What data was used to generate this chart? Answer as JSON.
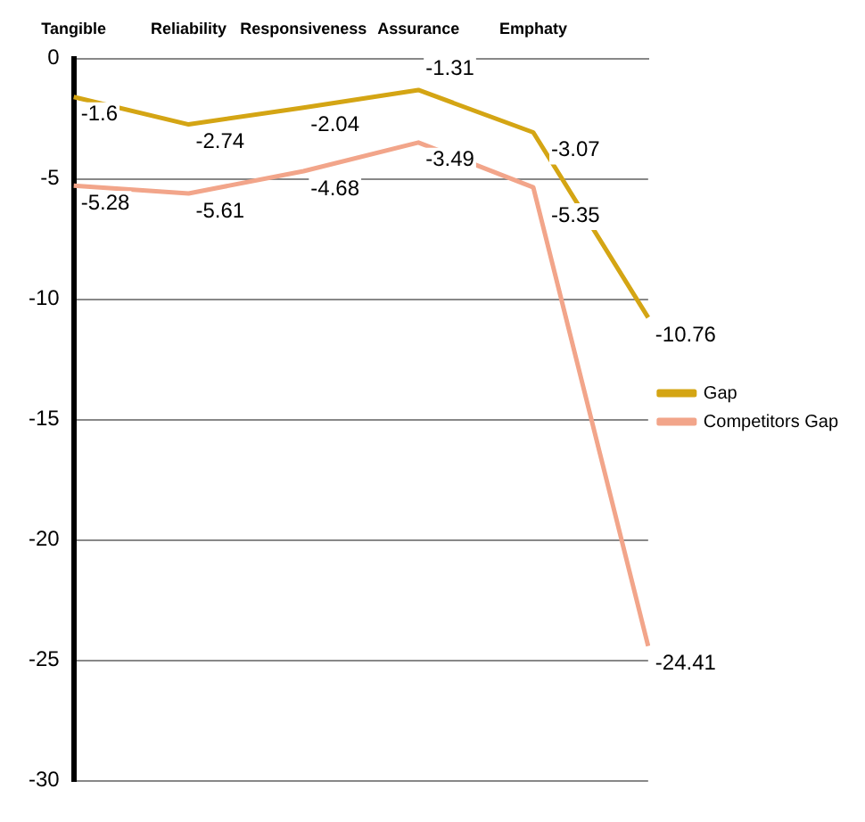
{
  "chart_data": {
    "type": "line",
    "categories": [
      "Tangible",
      "Reliability",
      "Responsiveness",
      "Assurance",
      "Emphaty",
      null
    ],
    "series": [
      {
        "name": "Gap",
        "color": "#d4a514",
        "values": [
          -1.6,
          -2.74,
          -2.04,
          -1.31,
          -3.07,
          -10.76
        ]
      },
      {
        "name": "Competitors Gap",
        "color": "#f2a58a",
        "values": [
          -5.28,
          -5.61,
          -4.68,
          -3.49,
          -5.35,
          -24.41
        ]
      }
    ],
    "ylim": [
      -30,
      0
    ],
    "yticks": [
      -30,
      -25,
      -20,
      -15,
      -10,
      -5,
      0
    ],
    "grid": "y",
    "legend": "right",
    "marker": "none",
    "data_labels": true
  }
}
